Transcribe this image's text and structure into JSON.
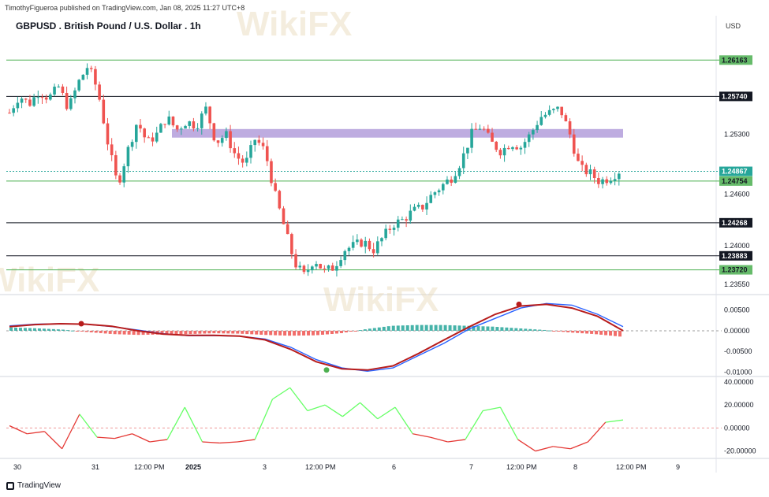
{
  "header": {
    "published": "TimothyFigueroa published on TradingView.com, Jan 08, 2025 11:27 UTC+8",
    "title": "GBPUSD . British Pound / U.S. Dollar . 1h",
    "currency": "USD",
    "footer": "TradingView"
  },
  "watermark": "WikiFX",
  "colors": {
    "up": "#26a69a",
    "down": "#ef5350",
    "zone": "#b39ddb",
    "support_green": "#4caf50",
    "macd_line": "#2962ff",
    "signal_up": "#4caf50",
    "signal_down": "#b71c1c",
    "rsi_up": "#66ff66",
    "rsi_down": "#e53935"
  },
  "chart_data": [
    {
      "type": "candlestick",
      "title": "GBPUSD . British Pound / U.S. Dollar . 1h",
      "y_ticks": [
        "1.25300",
        "1.24600",
        "1.24000",
        "1.23550"
      ],
      "ylim": [
        1.2345,
        1.2645
      ],
      "x_ticks": [
        "30",
        "31",
        "12:00 PM",
        "2025",
        "3",
        "12:00 PM",
        "6",
        "7",
        "12:00 PM",
        "8",
        "12:00 PM",
        "9"
      ],
      "price_path": [
        1.2555,
        1.2575,
        1.2565,
        1.258,
        1.2572,
        1.2585,
        1.256,
        1.259,
        1.261,
        1.258,
        1.252,
        1.247,
        1.251,
        1.2545,
        1.252,
        1.253,
        1.255,
        1.2535,
        1.2545,
        1.254,
        1.256,
        1.252,
        1.253,
        1.2505,
        1.2495,
        1.2525,
        1.251,
        1.246,
        1.242,
        1.238,
        1.2365,
        1.2385,
        1.237,
        1.2375,
        1.2395,
        1.24,
        1.2405,
        1.2395,
        1.241,
        1.2425,
        1.243,
        1.244,
        1.2445,
        1.246,
        1.247,
        1.248,
        1.25,
        1.253,
        1.254,
        1.252,
        1.251,
        1.252,
        1.2515,
        1.253,
        1.255,
        1.2555,
        1.256,
        1.253,
        1.249,
        1.2485,
        1.2475,
        1.2479,
        1.2487
      ],
      "horizontal_levels": [
        {
          "label": "1.26163",
          "price": 1.26163,
          "style": "green"
        },
        {
          "label": "1.25740",
          "price": 1.2574,
          "style": "black"
        },
        {
          "label": "1.24867",
          "price": 1.24867,
          "style": "current"
        },
        {
          "label": "1.24754",
          "price": 1.24754,
          "style": "green"
        },
        {
          "label": "1.24268",
          "price": 1.24268,
          "style": "black"
        },
        {
          "label": "1.23883",
          "price": 1.23883,
          "style": "black"
        },
        {
          "label": "1.23720",
          "price": 1.2372,
          "style": "green"
        }
      ],
      "zone": {
        "top": 1.2536,
        "bottom": 1.2526
      }
    },
    {
      "type": "macd",
      "y_ticks": [
        "0.00500",
        "0.00000",
        "-0.00500",
        "-0.01000"
      ],
      "ylim": [
        -0.0105,
        0.008
      ],
      "macd": [
        0.0012,
        0.0016,
        0.0017,
        0.0016,
        0.001,
        0.0002,
        -0.0007,
        -0.0012,
        -0.0012,
        -0.0013,
        -0.002,
        -0.004,
        -0.007,
        -0.009,
        -0.0098,
        -0.009,
        -0.006,
        -0.003,
        0.0005,
        0.003,
        0.0055,
        0.0066,
        0.0062,
        0.004,
        0.001
      ],
      "signal": [
        0.001,
        0.0015,
        0.0017,
        0.0016,
        0.0011,
        0.0,
        -0.0008,
        -0.0011,
        -0.0011,
        -0.0013,
        -0.0022,
        -0.0045,
        -0.0075,
        -0.0092,
        -0.0095,
        -0.0085,
        -0.0055,
        -0.0022,
        0.001,
        0.004,
        0.006,
        0.0064,
        0.0055,
        0.0035,
        0.0
      ],
      "histogram": [
        0.0008,
        0.0006,
        0.0003,
        -0.0003,
        -0.0008,
        -0.001,
        -0.0009,
        -0.0008,
        -0.0006,
        -0.0007,
        -0.001,
        -0.0012,
        -0.0011,
        -0.0006,
        0.0004,
        0.0012,
        0.0014,
        0.0014,
        0.0012,
        0.001,
        0.0006,
        0.0002,
        -0.0004,
        -0.0008,
        -0.0014
      ]
    },
    {
      "type": "line",
      "y_ticks": [
        "40.00000",
        "20.00000",
        "0.00000",
        "-20.00000"
      ],
      "ylim": [
        -25,
        42
      ],
      "values": [
        2,
        -5,
        -3,
        -18,
        12,
        -8,
        -9,
        -5,
        -12,
        -10,
        18,
        -12,
        -13,
        -12,
        -10,
        25,
        35,
        15,
        20,
        10,
        22,
        8,
        18,
        -5,
        -8,
        -12,
        -10,
        15,
        18,
        -10,
        -20,
        -16,
        -18,
        -12,
        5,
        7
      ]
    }
  ]
}
